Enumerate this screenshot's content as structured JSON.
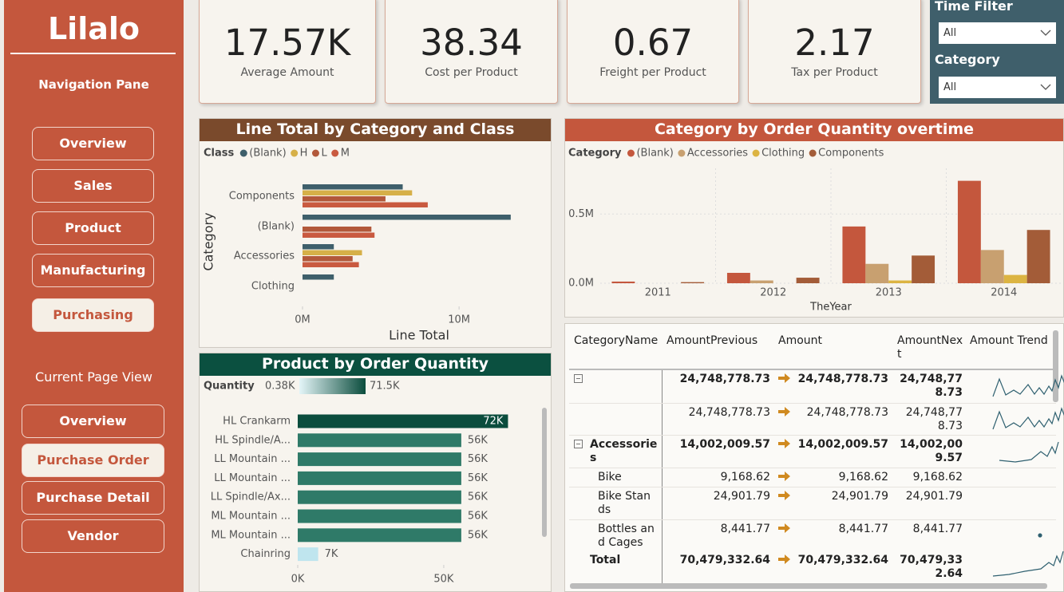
{
  "sidebar": {
    "logo": "Lilalo",
    "nav_title": "Navigation Pane",
    "nav": [
      "Overview",
      "Sales",
      "Product",
      "Manufacturing",
      "Purchasing"
    ],
    "current_title": "Current Page View",
    "pages": [
      "Overview",
      "Purchase Order",
      "Purchase Detail",
      "Vendor"
    ]
  },
  "kpis": [
    {
      "value": "17.57K",
      "label": "Average Amount"
    },
    {
      "value": "38.34",
      "label": "Cost per Product"
    },
    {
      "value": "0.67",
      "label": "Freight per Product"
    },
    {
      "value": "2.17",
      "label": "Tax per Product"
    }
  ],
  "filters": [
    {
      "label": "Time Filter",
      "value": "All"
    },
    {
      "label": "Category",
      "value": "All"
    }
  ],
  "charts": [
    {
      "type": "bar",
      "orientation": "horizontal",
      "title": "Line Total by Category and Class",
      "legend_title": "Class",
      "categories": [
        "Components",
        "(Blank)",
        "Accessories",
        "Clothing"
      ],
      "series": [
        {
          "name": "(Blank)",
          "color": "#3e5f6b",
          "values": [
            6400000,
            13300000,
            2000000,
            2000000
          ]
        },
        {
          "name": "H",
          "color": "#d6b048",
          "values": [
            7000000,
            null,
            3800000,
            null
          ]
        },
        {
          "name": "L",
          "color": "#b2583a",
          "values": [
            5300000,
            4400000,
            3200000,
            null
          ]
        },
        {
          "name": "M",
          "color": "#c95a40",
          "values": [
            8000000,
            4600000,
            3600000,
            null
          ]
        }
      ],
      "xlim": [
        0,
        15500000
      ],
      "xticks": [
        {
          "value": 0,
          "label": "0M"
        },
        {
          "value": 10000000,
          "label": "10M"
        }
      ],
      "xlabel": "Line Total",
      "ylabel": "Category"
    },
    {
      "type": "bar",
      "title": "Category by Order Quantity overtime",
      "legend_title": "Category",
      "categories": [
        "2011",
        "2012",
        "2013",
        "2014"
      ],
      "series": [
        {
          "name": "(Blank)",
          "color": "#c4573d",
          "values": [
            12000,
            75000,
            410000,
            740000
          ]
        },
        {
          "name": "Accessories",
          "color": "#c8a070",
          "values": [
            null,
            20000,
            140000,
            240000
          ]
        },
        {
          "name": "Clothing",
          "color": "#dcb442",
          "values": [
            null,
            null,
            20000,
            60000
          ]
        },
        {
          "name": "Components",
          "color": "#a35c38",
          "values": [
            8000,
            40000,
            200000,
            385000
          ]
        }
      ],
      "ylim": [
        0,
        830000
      ],
      "yticks": [
        {
          "value": 0,
          "label": "0.0M"
        },
        {
          "value": 500000,
          "label": "0.5M"
        }
      ],
      "xlabel": "TheYear",
      "grid": true
    },
    {
      "type": "bar",
      "orientation": "horizontal",
      "title": "Product by Order Quantity",
      "legend_title": "Quantity",
      "legend_min": "0.38K",
      "legend_max": "71.5K",
      "gradient": [
        "#e4f5f8",
        "#0b4d3d"
      ],
      "categories": [
        "HL Crankarm",
        "HL Spindle/A...",
        "LL Mountain ...",
        "LL Mountain ...",
        "LL Spindle/Ax...",
        "ML Mountain ...",
        "ML Mountain ...",
        "Chainring"
      ],
      "values": [
        72000,
        56000,
        56000,
        56000,
        56000,
        56000,
        56000,
        7000
      ],
      "value_labels": [
        "72K",
        "56K",
        "56K",
        "56K",
        "56K",
        "56K",
        "56K",
        "7K"
      ],
      "colors": [
        "#0b4d3d",
        "#2f7a68",
        "#2f7a68",
        "#2f7a68",
        "#2f7a68",
        "#2f7a68",
        "#2f7a68",
        "#bfe5ee"
      ],
      "xlim": [
        0,
        85000
      ],
      "xticks": [
        {
          "value": 0,
          "label": "0K"
        },
        {
          "value": 50000,
          "label": "50K"
        }
      ]
    }
  ],
  "table": {
    "columns": [
      "CategoryName",
      "AmountPrevious",
      "Amount",
      "AmountNext",
      "Amount Trend"
    ],
    "rows": [
      {
        "cells": [
          "24,748,778.73",
          "24,748,778.73",
          "24,748,778.73"
        ]
      },
      {
        "cells": [
          "24,748,778.73",
          "24,748,778.73",
          "24,748,778.73"
        ]
      },
      {
        "name": "Accessories",
        "cells": [
          "14,002,009.57",
          "14,002,009.57",
          "14,002,009.57"
        ]
      },
      {
        "name": "Bike",
        "cells": [
          "9,168.62",
          "9,168.62",
          "9,168.62"
        ]
      },
      {
        "name": "Bike Stands",
        "cells": [
          "24,901.79",
          "24,901.79",
          "24,901.79"
        ]
      },
      {
        "name": "Bottles and Cages",
        "cells": [
          "8,441.77",
          "8,441.77",
          "8,441.77"
        ]
      },
      {
        "name": "Total",
        "cells": [
          "70,479,332.64",
          "70,479,332.64",
          "70,479,332.64"
        ]
      }
    ]
  }
}
